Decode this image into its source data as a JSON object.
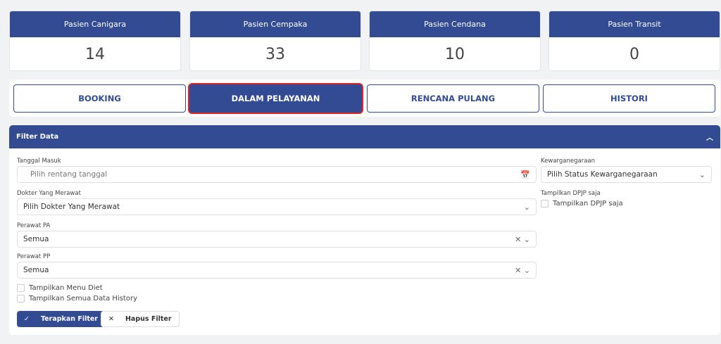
{
  "cards": [
    {
      "label": "Pasien Canigara",
      "value": "14"
    },
    {
      "label": "Pasien Cempaka",
      "value": "33"
    },
    {
      "label": "Pasien Cendana",
      "value": "10"
    },
    {
      "label": "Pasien Transit",
      "value": "0"
    }
  ],
  "tabs": [
    {
      "label": "BOOKING"
    },
    {
      "label": "DALAM PELAYANAN",
      "active": true
    },
    {
      "label": "RENCANA PULANG"
    },
    {
      "label": "HISTORI"
    }
  ],
  "filter": {
    "title": "Filter Data",
    "tanggal_label": "Tanggal Masuk",
    "tanggal_placeholder": "Pilih rentang tanggal",
    "dokter_label": "Dokter Yang Merawat",
    "dokter_value": "Pilih Dokter Yang Merawat",
    "pa_label": "Perawat PA",
    "pa_value": "Semua",
    "pp_label": "Perawat PP",
    "pp_value": "Semua",
    "menu_diet": "Tampilkan Menu Diet",
    "semua_history": "Tampilkan Semua Data History",
    "kw_label": "Kewarganegaraan",
    "kw_value": "Pilih Status Kewarganegaraan",
    "dpjp_label": "Tampilkan DPJP saja",
    "dpjp_check": "Tampilkan DPJP saja",
    "apply": "Terapkan Filter",
    "clear": "Hapus Filter"
  },
  "colors": {
    "primary": "#324b93",
    "active_outline": "#d9262c"
  }
}
